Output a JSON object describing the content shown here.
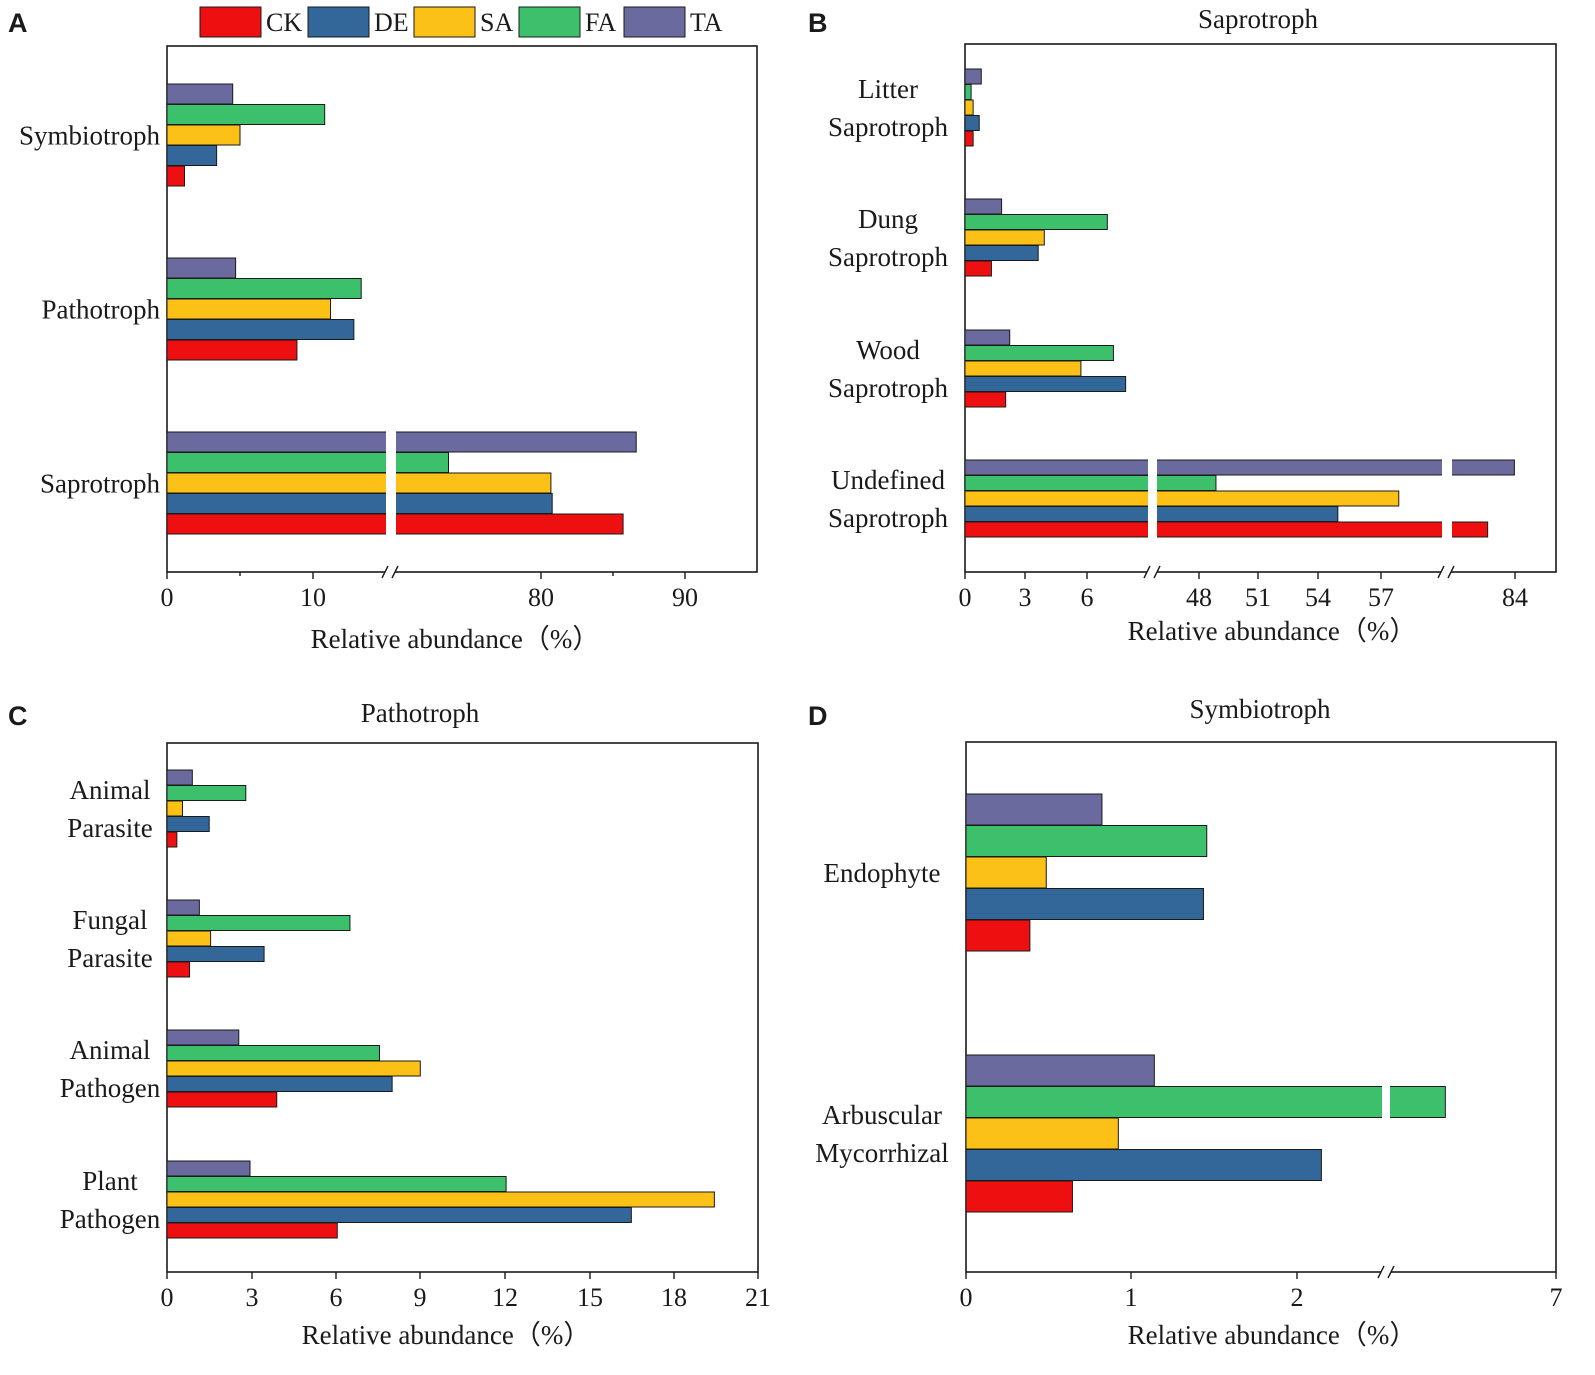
{
  "legend": [
    {
      "key": "CK",
      "label": "CK",
      "color": "#ee1010"
    },
    {
      "key": "DE",
      "label": "DE",
      "color": "#336699"
    },
    {
      "key": "SA",
      "label": "SA",
      "color": "#fbc117"
    },
    {
      "key": "FA",
      "label": "FA",
      "color": "#3cc06c"
    },
    {
      "key": "TA",
      "label": "TA",
      "color": "#6a6a9e"
    }
  ],
  "chart_data": [
    {
      "panel": "A",
      "type": "bar",
      "orientation": "horizontal",
      "title": "",
      "xlabel": "Relative abundance（%）",
      "xticks": [
        "0",
        "10",
        "80",
        "90"
      ],
      "axis_break": "between 10 and 80",
      "categories": [
        {
          "label_lines": [
            "Symbiotroph"
          ],
          "values": {
            "CK": 1.2,
            "DE": 3.4,
            "SA": 5.0,
            "FA": 10.8,
            "TA": 4.5
          }
        },
        {
          "label_lines": [
            "Pathotroph"
          ],
          "values": {
            "CK": 8.9,
            "DE": 12.8,
            "SA": 11.2,
            "FA": 13.3,
            "TA": 4.7
          }
        },
        {
          "label_lines": [
            "Saprotroph"
          ],
          "values": {
            "CK": 89.8,
            "DE": 84.4,
            "SA": 84.3,
            "FA": 76.5,
            "TA": 90.8
          }
        }
      ]
    },
    {
      "panel": "B",
      "type": "bar",
      "orientation": "horizontal",
      "title": "Saprotroph",
      "xlabel": "Relative abundance（%）",
      "xticks": [
        "0",
        "3",
        "6",
        "48",
        "51",
        "54",
        "57",
        "84"
      ],
      "axis_break": "between 6 and 48; between 57 and 84",
      "categories": [
        {
          "label_lines": [
            "Litter",
            "Saprotroph"
          ],
          "values": {
            "CK": 0.4,
            "DE": 0.7,
            "SA": 0.4,
            "FA": 0.3,
            "TA": 0.8
          }
        },
        {
          "label_lines": [
            "Dung",
            "Saprotroph"
          ],
          "values": {
            "CK": 1.3,
            "DE": 3.6,
            "SA": 3.9,
            "FA": 7.0,
            "TA": 1.8
          }
        },
        {
          "label_lines": [
            "Wood",
            "Saprotroph"
          ],
          "values": {
            "CK": 2.0,
            "DE": 7.9,
            "SA": 5.7,
            "FA": 7.3,
            "TA": 2.2
          }
        },
        {
          "label_lines": [
            "Undefined",
            "Saprotroph"
          ],
          "values": {
            "CK": 83.2,
            "DE": 54.2,
            "SA": 57.3,
            "FA": 48.0,
            "TA": 84.1
          }
        }
      ]
    },
    {
      "panel": "C",
      "type": "bar",
      "orientation": "horizontal",
      "title": "Pathotroph",
      "xlabel": "Relative abundance（%）",
      "xticks": [
        "0",
        "3",
        "6",
        "9",
        "12",
        "15",
        "18",
        "21"
      ],
      "xlim": [
        0,
        21
      ],
      "categories": [
        {
          "label_lines": [
            "Animal",
            "Parasite"
          ],
          "values": {
            "CK": 0.35,
            "DE": 1.5,
            "SA": 0.55,
            "FA": 2.8,
            "TA": 0.9
          }
        },
        {
          "label_lines": [
            "Fungal",
            "Parasite"
          ],
          "values": {
            "CK": 0.8,
            "DE": 3.45,
            "SA": 1.55,
            "FA": 6.5,
            "TA": 1.15
          }
        },
        {
          "label_lines": [
            "Animal",
            "Pathogen"
          ],
          "values": {
            "CK": 3.9,
            "DE": 8.0,
            "SA": 9.0,
            "FA": 7.55,
            "TA": 2.55
          }
        },
        {
          "label_lines": [
            "Plant",
            "Pathogen"
          ],
          "values": {
            "CK": 6.05,
            "DE": 16.5,
            "SA": 19.45,
            "FA": 12.05,
            "TA": 2.95
          }
        }
      ]
    },
    {
      "panel": "D",
      "type": "bar",
      "orientation": "horizontal",
      "title": "Symbiotroph",
      "xlabel": "Relative abundance（%）",
      "xticks": [
        "0",
        "1",
        "2",
        "7"
      ],
      "axis_break": "between 2 and 7",
      "categories": [
        {
          "label_lines": [
            "Endophyte"
          ],
          "values": {
            "CK": 0.39,
            "DE": 1.45,
            "SA": 0.49,
            "FA": 1.47,
            "TA": 0.83
          }
        },
        {
          "label_lines": [
            "Arbuscular",
            "Mycorrhizal"
          ],
          "values": {
            "CK": 0.65,
            "DE": 2.17,
            "SA": 0.93,
            "FA": 6.2,
            "TA": 1.15
          }
        }
      ]
    }
  ]
}
